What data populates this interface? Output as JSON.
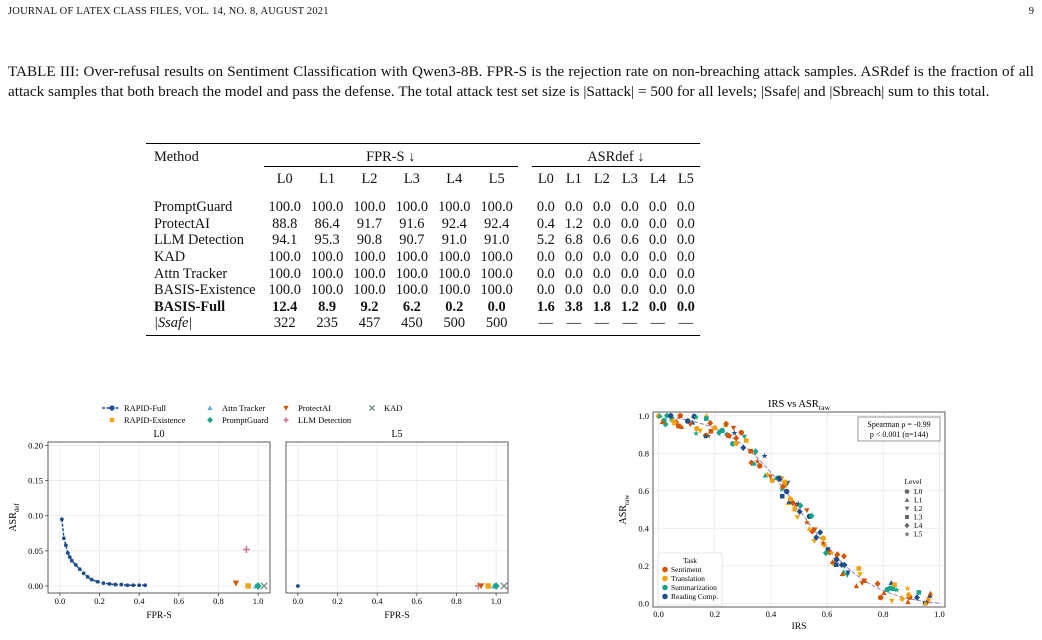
{
  "header": {
    "left": "JOURNAL OF LATEX CLASS FILES, VOL. 14, NO. 8, AUGUST 2021",
    "page": "9"
  },
  "caption": "TABLE III: Over-refusal results on Sentiment Classification with Qwen3-8B. FPR-S is the rejection rate on non-breaching attack samples. ASRdef is the fraction of all attack samples that both breach the model and pass the defense. The total attack test set size is |Sattack| = 500 for all levels; |Ssafe| and |Sbreach| sum to this total.",
  "table": {
    "method_header": "Method",
    "group1": "FPR-S ↓",
    "group2": "ASRdef ↓",
    "levels": [
      "L0",
      "L1",
      "L2",
      "L3",
      "L4",
      "L5"
    ],
    "rows": [
      {
        "method": "PromptGuard",
        "fpr": [
          "100.0",
          "100.0",
          "100.0",
          "100.0",
          "100.0",
          "100.0"
        ],
        "asr": [
          "0.0",
          "0.0",
          "0.0",
          "0.0",
          "0.0",
          "0.0"
        ]
      },
      {
        "method": "ProtectAI",
        "fpr": [
          "88.8",
          "86.4",
          "91.7",
          "91.6",
          "92.4",
          "92.4"
        ],
        "asr": [
          "0.4",
          "1.2",
          "0.0",
          "0.0",
          "0.0",
          "0.0"
        ]
      },
      {
        "method": "LLM Detection",
        "fpr": [
          "94.1",
          "95.3",
          "90.8",
          "90.7",
          "91.0",
          "91.0"
        ],
        "asr": [
          "5.2",
          "6.8",
          "0.6",
          "0.6",
          "0.0",
          "0.0"
        ]
      },
      {
        "method": "KAD",
        "fpr": [
          "100.0",
          "100.0",
          "100.0",
          "100.0",
          "100.0",
          "100.0"
        ],
        "asr": [
          "0.0",
          "0.0",
          "0.0",
          "0.0",
          "0.0",
          "0.0"
        ]
      },
      {
        "method": "Attn Tracker",
        "fpr": [
          "100.0",
          "100.0",
          "100.0",
          "100.0",
          "100.0",
          "100.0"
        ],
        "asr": [
          "0.0",
          "0.0",
          "0.0",
          "0.0",
          "0.0",
          "0.0"
        ]
      },
      {
        "method": "BASIS-Existence",
        "fpr": [
          "100.0",
          "100.0",
          "100.0",
          "100.0",
          "100.0",
          "100.0"
        ],
        "asr": [
          "0.0",
          "0.0",
          "0.0",
          "0.0",
          "0.0",
          "0.0"
        ]
      },
      {
        "method": "BASIS-Full",
        "fpr": [
          "12.4",
          "8.9",
          "9.2",
          "6.2",
          "0.2",
          "0.0"
        ],
        "asr": [
          "1.6",
          "3.8",
          "1.8",
          "1.2",
          "0.0",
          "0.0"
        ],
        "bold": true
      }
    ],
    "safe_row": {
      "label": "|Ssafe|",
      "values": [
        "322",
        "235",
        "457",
        "450",
        "500",
        "500"
      ],
      "dash": "—"
    }
  },
  "figure_left": {
    "legend": [
      "RAPID-Full",
      "Attn Tracker",
      "ProtectAI",
      "KAD",
      "RAPID-Existence",
      "PromptGuard",
      "LLM Detection"
    ],
    "panel_titles": [
      "L0",
      "L5"
    ],
    "xlabel": "FPR-S",
    "ylabel": "ASR",
    "ylabel_sub": "def",
    "yticks": [
      "0.00",
      "0.05",
      "0.10",
      "0.15",
      "0.20"
    ],
    "xticks": [
      "0.0",
      "0.2",
      "0.4",
      "0.6",
      "0.8",
      "1.0"
    ],
    "colors": {
      "rapid_full": "#1f4e8c",
      "existence": "#f0a30a",
      "attn": "#5dade2",
      "protectai": "#d35400",
      "promptguard": "#17a589",
      "llm": "#d16b8f",
      "kad": "#7f8c8d"
    }
  },
  "figure_right": {
    "title": "IRS vs ASR",
    "title_sub": "raw",
    "xlabel": "IRS",
    "ylabel": "ASR",
    "ylabel_sub": "raw",
    "xticks": [
      "0.0",
      "0.2",
      "0.4",
      "0.6",
      "0.8",
      "1.0"
    ],
    "yticks": [
      "0.0",
      "0.2",
      "0.4",
      "0.6",
      "0.8",
      "1.0"
    ],
    "annotation1": "Spearman ρ = -0.99",
    "annotation2": "p < 0.001  (n=144)",
    "task_title": "Task",
    "tasks": [
      "Sentiment",
      "Translation",
      "Summarization",
      "Reading Comp."
    ],
    "level_title": "Level",
    "levels": [
      "L0",
      "L1",
      "L2",
      "L3",
      "L4",
      "L5"
    ],
    "task_colors": [
      "#d35400",
      "#f0a30a",
      "#17a589",
      "#1f4e8c"
    ]
  }
}
